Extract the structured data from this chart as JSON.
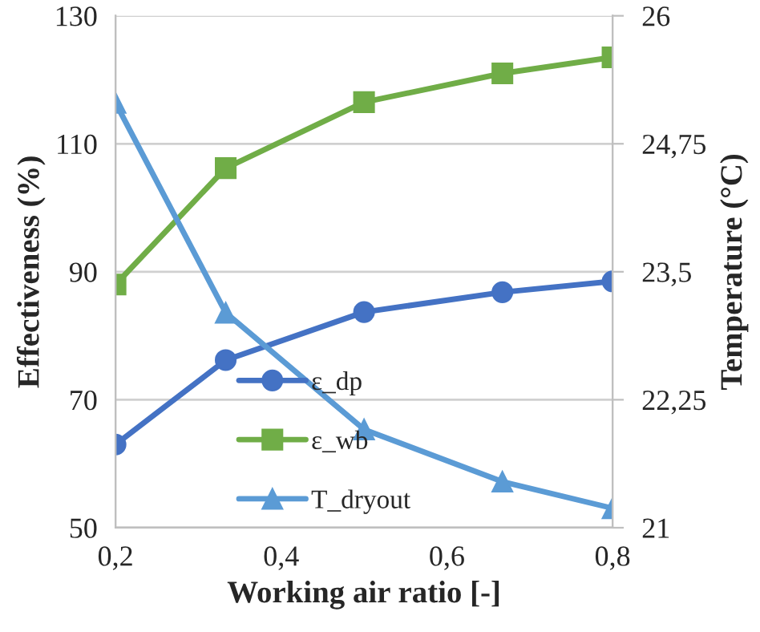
{
  "chart_data": {
    "type": "line",
    "xlabel": "Working air ratio [-]",
    "ylabel": "Effectiveness (%)",
    "y2label": "Temperature (°C)",
    "x": [
      0.2,
      0.333,
      0.5,
      0.667,
      0.8
    ],
    "series": [
      {
        "name": "ε_dp",
        "color": "#4472c4",
        "marker": "circle",
        "values": [
          63,
          76.2,
          83.7,
          86.8,
          88.5
        ]
      },
      {
        "name": "ε_wb",
        "color": "#70ad47",
        "marker": "square",
        "values": [
          88,
          106.2,
          116.5,
          121,
          123.5
        ]
      },
      {
        "name": "T_dryout",
        "color": "#5b9bd5",
        "marker": "triangle",
        "axis": "y2",
        "values": [
          25.15,
          23.1,
          21.96,
          21.45,
          21.19
        ]
      }
    ],
    "xlim": [
      0.2,
      0.8
    ],
    "xticks": [
      {
        "value": 0.2,
        "label": "0,2"
      },
      {
        "value": 0.4,
        "label": "0,4"
      },
      {
        "value": 0.6,
        "label": "0,6"
      },
      {
        "value": 0.8,
        "label": "0,8"
      }
    ],
    "ylim": [
      50,
      130
    ],
    "yticks": [
      50,
      70,
      90,
      110,
      130
    ],
    "y2lim": [
      21,
      26
    ],
    "y2ticks": [
      21,
      {
        "value": 22.25,
        "label": "22,25"
      },
      {
        "value": 23.5,
        "label": "23,5"
      },
      {
        "value": 24.75,
        "label": "24,75"
      },
      26
    ],
    "grid": "y",
    "legend": "bottom left",
    "line_style": "solid"
  }
}
